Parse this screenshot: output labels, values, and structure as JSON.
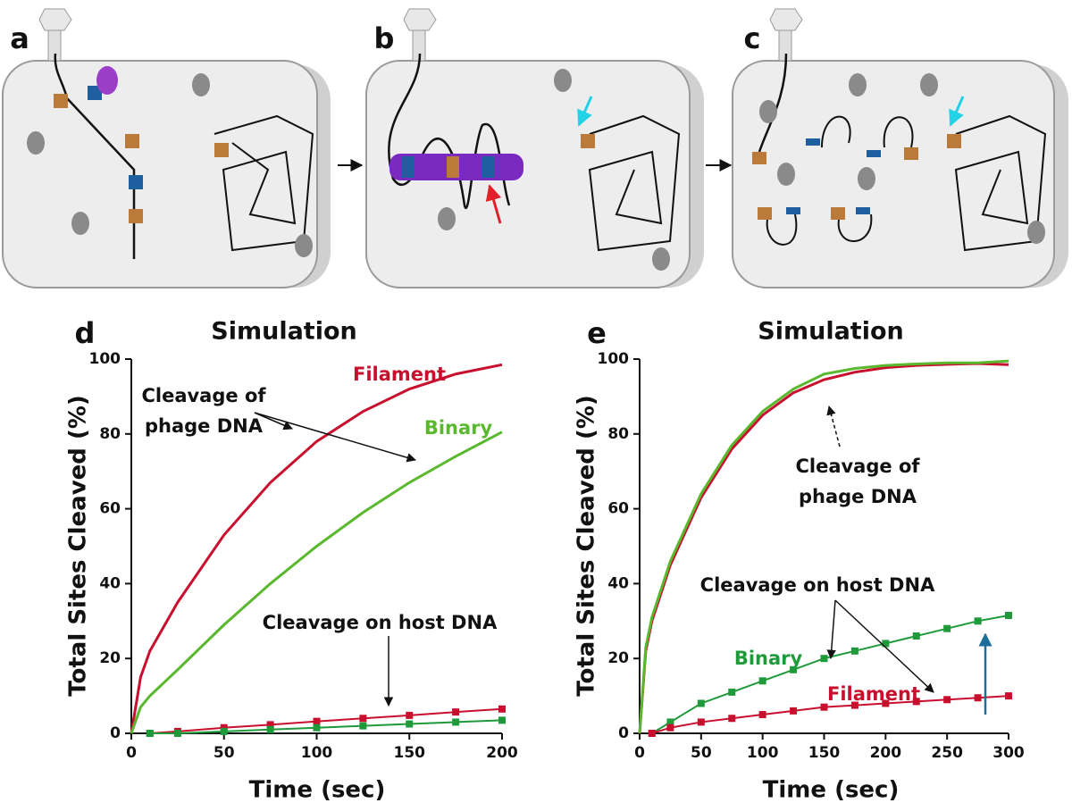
{
  "panels": [
    {
      "label": "a"
    },
    {
      "label": "b"
    },
    {
      "label": "c"
    }
  ],
  "chart_data": [
    {
      "type": "line",
      "panel_label": "d",
      "title": "Simulation",
      "xlabel": "Time (sec)",
      "ylabel": "Total Sites Cleaved (%)",
      "xlim": [
        0,
        200
      ],
      "ylim": [
        0,
        100
      ],
      "xticks": [
        0,
        50,
        100,
        150,
        200
      ],
      "yticks": [
        0,
        20,
        40,
        60,
        80,
        100
      ],
      "x": [
        0,
        5,
        10,
        25,
        50,
        75,
        100,
        125,
        150,
        175,
        200
      ],
      "series": [
        {
          "name": "Filament",
          "color": "#c8102e",
          "marker": "none",
          "values": [
            0,
            15,
            22,
            35,
            53,
            67,
            78,
            86,
            92,
            96,
            98.5
          ]
        },
        {
          "name": "Binary",
          "color": "#5ab82e",
          "marker": "none",
          "values": [
            0,
            7,
            10,
            17,
            29,
            40,
            50,
            59,
            67,
            74,
            80.5
          ]
        },
        {
          "color": "#c8102e",
          "marker": "square",
          "values": [
            null,
            null,
            0,
            0.5,
            1.5,
            2.3,
            3.2,
            4,
            4.8,
            5.7,
            6.5
          ]
        },
        {
          "color": "#1f9a3a",
          "marker": "square",
          "values": [
            null,
            null,
            0,
            0,
            0.5,
            1,
            1.5,
            2,
            2.5,
            3,
            3.5
          ]
        }
      ],
      "annotations": [
        {
          "text": [
            "Cleavage of",
            "phage DNA"
          ]
        },
        {
          "text": [
            "Cleavage on host DNA"
          ]
        }
      ]
    },
    {
      "type": "line",
      "panel_label": "e",
      "title": "Simulation",
      "xlabel": "Time (sec)",
      "ylabel": "Total Sites Cleaved (%)",
      "xlim": [
        0,
        300
      ],
      "ylim": [
        0,
        100
      ],
      "xticks": [
        0,
        50,
        100,
        150,
        200,
        250,
        300
      ],
      "yticks": [
        0,
        20,
        40,
        60,
        80,
        100
      ],
      "x": [
        0,
        5,
        10,
        25,
        50,
        75,
        100,
        125,
        150,
        175,
        200,
        225,
        250,
        275,
        300
      ],
      "series": [
        {
          "color": "#c8102e",
          "marker": "none",
          "values": [
            0,
            22,
            30,
            45,
            63,
            76,
            85,
            91,
            94.5,
            96.5,
            97.7,
            98.3,
            98.6,
            98.8,
            98.5
          ]
        },
        {
          "color": "#5ab82e",
          "marker": "none",
          "values": [
            0,
            23,
            31,
            46,
            64,
            77,
            86,
            92,
            96,
            97.5,
            98.3,
            98.7,
            99,
            99,
            99.5
          ]
        },
        {
          "name": "Binary",
          "color": "#1f9a3a",
          "marker": "square",
          "values": [
            null,
            null,
            0,
            3,
            8,
            11,
            14,
            17,
            20,
            22,
            24,
            26,
            28,
            30,
            31.5
          ]
        },
        {
          "name": "Filament",
          "color": "#c8102e",
          "marker": "square",
          "values": [
            null,
            null,
            0,
            1.5,
            3,
            4,
            5,
            6,
            7,
            7.5,
            8,
            8.5,
            9,
            9.5,
            10
          ]
        }
      ],
      "annotations": [
        {
          "text": [
            "Cleavage of",
            "phage DNA"
          ]
        },
        {
          "text": [
            "Cleavage on host DNA"
          ]
        }
      ]
    }
  ]
}
